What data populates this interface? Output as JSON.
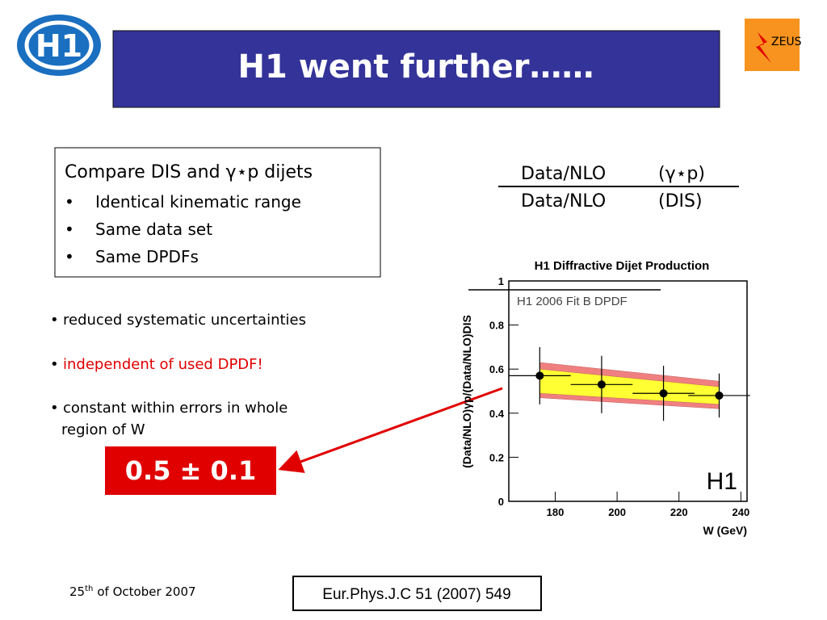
{
  "slide": {
    "title": "H1 went further……",
    "logo_left": "H1",
    "logo_right": "ZEUS",
    "box_heading": "Compare DIS and γ⋆p  dijets",
    "box_bullets": [
      "Identical kinematic range",
      "Same data set",
      "Same DPDFs"
    ],
    "ratio": {
      "num_left": "Data/NLO",
      "num_right": "(γ⋆p)",
      "den_left": "Data/NLO",
      "den_right": "(DIS)"
    },
    "points": [
      "reduced systematic uncertainties",
      "independent of used DPDF!",
      "constant within errors in whole",
      "region of W"
    ],
    "result": "0.5 ± 0.1",
    "date": {
      "day": "25",
      "suffix": "th",
      "rest": "of October 2007"
    },
    "reference": "Eur.Phys.J.C 51 (2007) 549"
  },
  "chart_data": {
    "type": "scatter",
    "title": "H1 Diffractive Dijet Production",
    "x_label": "W (GeV)",
    "y_label": "(Data/NLO)γp/(Data/NLO)DIS",
    "legend_label": "H1 2006 Fit B DPDF",
    "experiment_label": "H1",
    "xlim": [
      165,
      242
    ],
    "ylim": [
      0,
      1
    ],
    "xticks": [
      180,
      200,
      220,
      240
    ],
    "yticks": [
      0,
      0.2,
      0.4,
      0.6,
      0.8,
      1
    ],
    "series": [
      {
        "name": "H1",
        "color": "#000000",
        "x": [
          175,
          195,
          215,
          233
        ],
        "values": [
          0.57,
          0.53,
          0.49,
          0.48
        ],
        "errors": [
          0.13,
          0.13,
          0.125,
          0.1
        ],
        "xerr": [
          10,
          10,
          10,
          10
        ]
      }
    ],
    "bands": [
      {
        "color": "#f08080",
        "x": [
          175,
          233
        ],
        "upper": [
          0.63,
          0.545
        ],
        "lower": [
          0.47,
          0.42
        ]
      },
      {
        "color": "#ffff33",
        "x": [
          175,
          233
        ],
        "upper": [
          0.6,
          0.52
        ],
        "lower": [
          0.49,
          0.44
        ]
      }
    ]
  }
}
